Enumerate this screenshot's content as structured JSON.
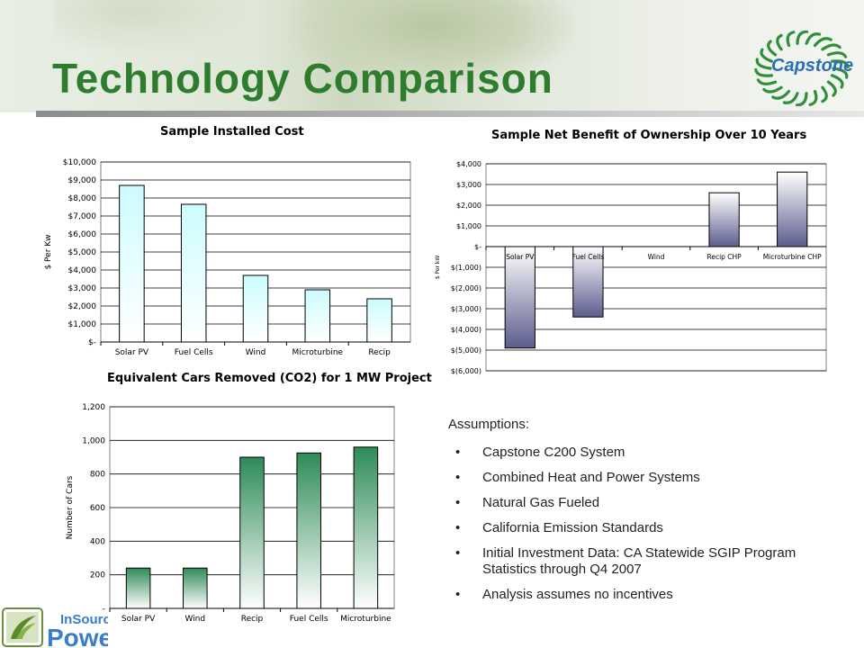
{
  "slide": {
    "title": "Technology Comparison",
    "logo_text": "Capstone",
    "assumptions_title": "Assumptions:",
    "assumptions": [
      "Capstone C200 System",
      "Combined Heat and Power Systems",
      "Natural Gas Fueled",
      "California Emission Standards",
      "Initial Investment Data: CA Statewide SGIP Program Statistics through Q4 2007",
      "Analysis assumes no incentives"
    ],
    "footer_logo": {
      "line1": "InSource",
      "line2": "Power"
    },
    "colors": {
      "title": "#2e7d2e",
      "logo": "#2a6fb3",
      "footer_logo": "#3a7dc9",
      "footer_logo_accent": "#6aa52e"
    }
  },
  "chart_data": [
    {
      "type": "bar",
      "title": "Sample Installed Cost",
      "ylabel": "$ Per Kw",
      "xlabel": "",
      "categories": [
        "Solar PV",
        "Fuel Cells",
        "Wind",
        "Microturbine",
        "Recip"
      ],
      "values": [
        8700,
        7650,
        3700,
        2900,
        2400
      ],
      "ylim": [
        0,
        10000
      ],
      "ticks": [
        0,
        1000,
        2000,
        3000,
        4000,
        5000,
        6000,
        7000,
        8000,
        9000,
        10000
      ],
      "tick_labels": [
        "$-",
        "$1,000",
        "$2,000",
        "$3,000",
        "$4,000",
        "$5,000",
        "$6,000",
        "$7,000",
        "$8,000",
        "$9,000",
        "$10,000"
      ],
      "grid": true,
      "fill_top": "#ccfcff",
      "fill_bottom": "#ffffff"
    },
    {
      "type": "bar",
      "title": "Sample Net Benefit of Ownership Over 10 Years",
      "ylabel": "$ Per kW",
      "xlabel": "",
      "categories": [
        "Solar PV",
        "Fuel Cells",
        "Wind",
        "Recip CHP",
        "Microturbine CHP"
      ],
      "values": [
        -4900,
        -3400,
        0,
        2600,
        3600
      ],
      "ylim": [
        -6000,
        4000
      ],
      "ticks": [
        -6000,
        -5000,
        -4000,
        -3000,
        -2000,
        -1000,
        0,
        1000,
        2000,
        3000,
        4000
      ],
      "tick_labels": [
        "$(6,000)",
        "$(5,000)",
        "$(4,000)",
        "$(3,000)",
        "$(2,000)",
        "$(1,000)",
        "$-",
        "$1,000",
        "$2,000",
        "$3,000",
        "$4,000"
      ],
      "grid": true,
      "fill_dark": "#5c5c8e",
      "fill_light": "#ffffff"
    },
    {
      "type": "bar",
      "title": "Equivalent Cars Removed (CO2) for 1 MW Project",
      "ylabel": "Number of Cars",
      "xlabel": "",
      "categories": [
        "Solar PV",
        "Wind",
        "Recip",
        "Fuel Cells",
        "Microturbine"
      ],
      "values": [
        240,
        240,
        900,
        925,
        960
      ],
      "ylim": [
        0,
        1200
      ],
      "ticks": [
        0,
        200,
        400,
        600,
        800,
        1000,
        1200
      ],
      "tick_labels": [
        "-",
        "200",
        "400",
        "600",
        "800",
        "1,000",
        "1,200"
      ],
      "grid": true,
      "fill_top": "#2e8b57",
      "fill_bottom": "#ffffff"
    }
  ]
}
